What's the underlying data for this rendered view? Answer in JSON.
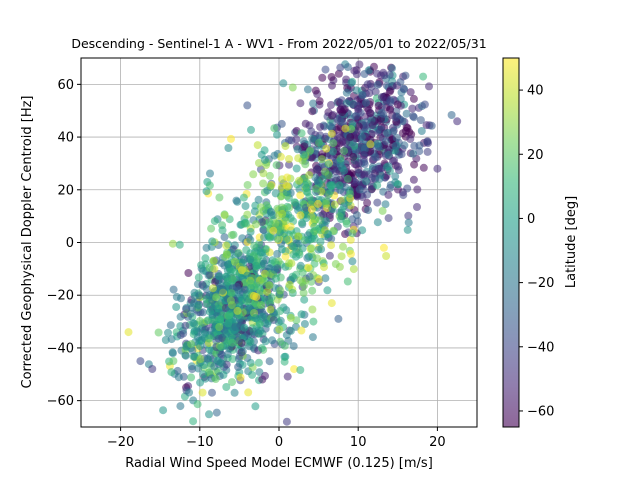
{
  "chart_data": {
    "type": "scatter",
    "title": "Descending - Sentinel-1 A - WV1 - From 2022/05/01 to 2022/05/31",
    "xlabel": "Radial Wind Speed Model ECMWF (0.125) [m/s]",
    "ylabel": "Corrected Geophysical Doppler Centroid [Hz]",
    "xlim": [
      -25,
      25
    ],
    "ylim": [
      -70,
      70
    ],
    "xticks": [
      -20,
      -10,
      0,
      10,
      20
    ],
    "yticks": [
      -60,
      -40,
      -20,
      0,
      20,
      40,
      60
    ],
    "xtick_labels": [
      "−20",
      "−10",
      "0",
      "10",
      "20"
    ],
    "ytick_labels": [
      "−60",
      "−40",
      "−20",
      "0",
      "20",
      "40",
      "60"
    ],
    "grid": true,
    "colorbar": {
      "label": "Latitude [deg]",
      "range": [
        -65,
        50
      ],
      "ticks": [
        -60,
        -40,
        -20,
        0,
        20,
        40
      ],
      "tick_labels": [
        "−60",
        "−40",
        "−20",
        "0",
        "20",
        "40"
      ],
      "colormap": "viridis",
      "alpha": 0.6
    },
    "series": [
      {
        "clusters": [
          {
            "x_center": 10,
            "y_center": 38,
            "x_spread": 4.0,
            "y_spread": 14,
            "latitude": -45,
            "count": 700
          },
          {
            "x_center": -6,
            "y_center": -28,
            "x_spread": 3.5,
            "y_spread": 12,
            "latitude": -10,
            "count": 750
          },
          {
            "x_center": 1,
            "y_center": 5,
            "x_spread": 4.5,
            "y_spread": 15,
            "latitude": 15,
            "count": 500
          }
        ],
        "outliers": [
          {
            "x": 22.5,
            "y": 46,
            "latitude": -50
          },
          {
            "x": -19,
            "y": -34,
            "latitude": 45
          },
          {
            "x": 1,
            "y": -68,
            "latitude": -45
          },
          {
            "x": -17.5,
            "y": -45,
            "latitude": -40
          },
          {
            "x": 7.5,
            "y": -29,
            "latitude": -30
          },
          {
            "x": 20,
            "y": 28,
            "latitude": -50
          },
          {
            "x": -16,
            "y": -48,
            "latitude": -45
          },
          {
            "x": -4,
            "y": 52,
            "latitude": -35
          }
        ]
      }
    ]
  }
}
